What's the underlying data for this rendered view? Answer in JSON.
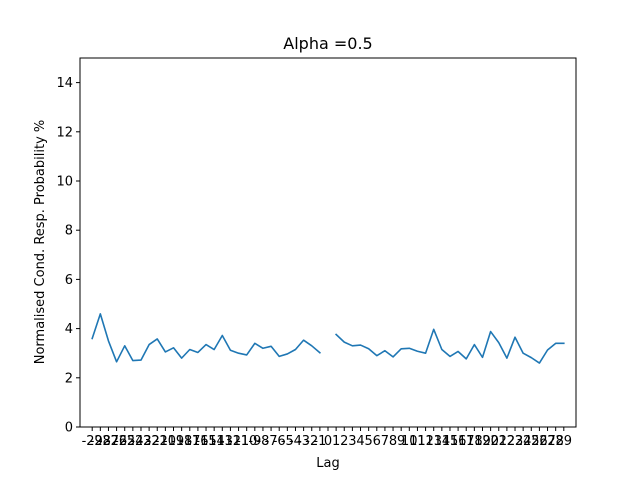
{
  "chart_data": {
    "type": "line",
    "title": "Alpha =0.5",
    "xlabel": "Lag",
    "ylabel": "Normalised Cond. Resp. Probability %",
    "ylim": [
      0,
      15
    ],
    "yticks": [
      0,
      2,
      4,
      6,
      8,
      10,
      12,
      14
    ],
    "xlim": [
      -30.5,
      30.5
    ],
    "xticks": [
      -29,
      -28,
      -27,
      -26,
      -25,
      -24,
      -23,
      -22,
      -21,
      -20,
      -19,
      -18,
      -17,
      -16,
      -15,
      -14,
      -13,
      -12,
      -11,
      -10,
      -9,
      -8,
      -7,
      -6,
      -5,
      -4,
      -3,
      -2,
      -1,
      0,
      1,
      2,
      3,
      4,
      5,
      6,
      7,
      8,
      9,
      10,
      11,
      12,
      13,
      14,
      15,
      16,
      17,
      18,
      19,
      20,
      21,
      22,
      23,
      24,
      25,
      26,
      27,
      28,
      29
    ],
    "grid": false,
    "color": "#1f77b4",
    "series": [
      {
        "segments": [
          {
            "x": [
              -29,
              -28,
              -27,
              -26,
              -25,
              -24,
              -23,
              -22,
              -21,
              -20,
              -19,
              -18,
              -17,
              -16,
              -15,
              -14,
              -13,
              -12,
              -11,
              -10,
              -9,
              -8,
              -7,
              -6,
              -5,
              -4,
              -3,
              -2,
              -1
            ],
            "y": [
              3.6,
              4.6,
              3.5,
              2.65,
              3.3,
              2.7,
              2.72,
              3.35,
              3.58,
              3.05,
              3.22,
              2.8,
              3.15,
              3.03,
              3.35,
              3.15,
              3.72,
              3.12,
              3.0,
              2.93,
              3.4,
              3.2,
              3.28,
              2.87,
              2.97,
              3.15,
              3.53,
              3.3,
              3.02
            ]
          },
          {
            "x": [
              1,
              2,
              3,
              4,
              5,
              6,
              7,
              8,
              9,
              10,
              11,
              12,
              13,
              14,
              15,
              16,
              17,
              18,
              19,
              20,
              21,
              22,
              23,
              24,
              25,
              26,
              27,
              28,
              29
            ],
            "y": [
              3.76,
              3.45,
              3.3,
              3.33,
              3.18,
              2.9,
              3.1,
              2.85,
              3.18,
              3.2,
              3.08,
              3.0,
              3.97,
              3.15,
              2.87,
              3.07,
              2.77,
              3.35,
              2.83,
              3.88,
              3.43,
              2.8,
              3.65,
              3.0,
              2.82,
              2.6,
              3.13,
              3.4,
              3.4
            ]
          }
        ]
      }
    ]
  }
}
